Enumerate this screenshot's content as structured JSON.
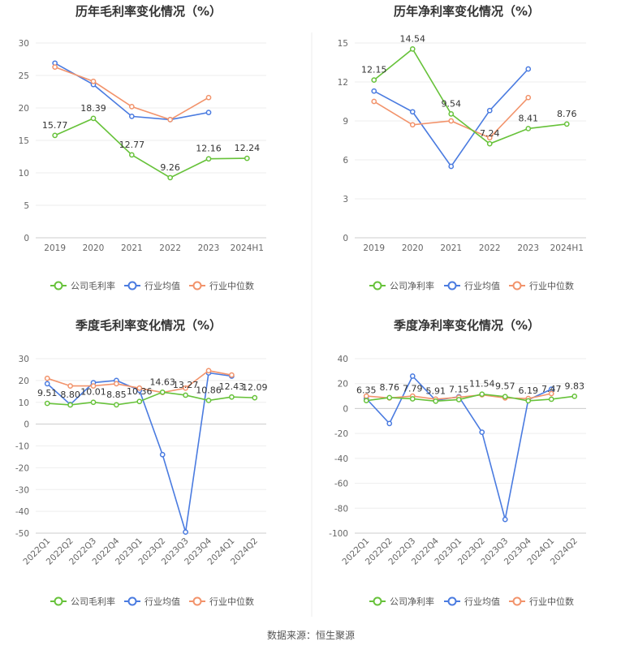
{
  "colors": {
    "company": "#67c23a",
    "industry_avg": "#4a7be0",
    "industry_median": "#f2936b"
  },
  "legend": {
    "gross_company": "公司毛利率",
    "net_company": "公司净利率",
    "industry_avg": "行业均值",
    "industry_median": "行业中位数"
  },
  "source": "数据来源：恒生聚源",
  "chart_data": [
    {
      "type": "line",
      "title": "历年毛利率变化情况（%）",
      "categories": [
        "2019",
        "2020",
        "2021",
        "2022",
        "2023",
        "2024H1"
      ],
      "ylim": [
        0,
        30
      ],
      "yticks": [
        0,
        5,
        10,
        15,
        20,
        25,
        30
      ],
      "grid": true,
      "legend_position": "bottom",
      "series": [
        {
          "name": "公司毛利率",
          "values": [
            15.77,
            18.39,
            12.77,
            9.26,
            12.16,
            12.24
          ],
          "labels": [
            "15.77",
            "18.39",
            "12.77",
            "9.26",
            "12.16",
            "12.24"
          ]
        },
        {
          "name": "行业均值",
          "values": [
            26.9,
            23.6,
            18.7,
            18.2,
            19.3,
            null
          ]
        },
        {
          "name": "行业中位数",
          "values": [
            26.3,
            24.1,
            20.2,
            18.2,
            21.6,
            null
          ]
        }
      ]
    },
    {
      "type": "line",
      "title": "历年净利率变化情况（%）",
      "categories": [
        "2019",
        "2020",
        "2021",
        "2022",
        "2023",
        "2024H1"
      ],
      "ylim": [
        0,
        15
      ],
      "yticks": [
        0,
        3,
        6,
        9,
        12,
        15
      ],
      "grid": true,
      "legend_position": "bottom",
      "series": [
        {
          "name": "公司净利率",
          "values": [
            12.15,
            14.54,
            9.54,
            7.24,
            8.41,
            8.76
          ],
          "labels": [
            "12.15",
            "14.54",
            "9.54",
            "7.24",
            "8.41",
            "8.76"
          ]
        },
        {
          "name": "行业均值",
          "values": [
            11.3,
            9.7,
            5.5,
            9.8,
            13.0,
            null
          ]
        },
        {
          "name": "行业中位数",
          "values": [
            10.5,
            8.7,
            9.0,
            7.7,
            10.8,
            null
          ]
        }
      ]
    },
    {
      "type": "line",
      "title": "季度毛利率变化情况（%）",
      "categories": [
        "2022Q1",
        "2022Q2",
        "2022Q3",
        "2022Q4",
        "2023Q1",
        "2023Q2",
        "2023Q3",
        "2023Q4",
        "2024Q1",
        "2024Q2"
      ],
      "ylim": [
        -50,
        30
      ],
      "yticks": [
        -50,
        -40,
        -30,
        -20,
        -10,
        0,
        10,
        20,
        30
      ],
      "grid": true,
      "legend_position": "bottom",
      "series": [
        {
          "name": "公司毛利率",
          "values": [
            9.51,
            8.8,
            10.01,
            8.85,
            10.36,
            14.63,
            13.27,
            10.86,
            12.43,
            12.09
          ],
          "labels": [
            "9.51",
            "8.80",
            "10.01",
            "8.85",
            "10.36",
            "14.63",
            "13.27",
            "10.86",
            "12.43",
            "12.09"
          ]
        },
        {
          "name": "行业均值",
          "values": [
            18.5,
            9.0,
            19.0,
            20.0,
            15.5,
            -14.0,
            -49.5,
            23.5,
            22.0,
            null
          ]
        },
        {
          "name": "行业中位数",
          "values": [
            21.0,
            17.5,
            17.5,
            18.5,
            16.5,
            14.5,
            16.5,
            24.5,
            22.5,
            null
          ]
        }
      ]
    },
    {
      "type": "line",
      "title": "季度净利率变化情况（%）",
      "categories": [
        "2022Q1",
        "2022Q2",
        "2022Q3",
        "2022Q4",
        "2023Q1",
        "2023Q2",
        "2023Q3",
        "2023Q4",
        "2024Q1",
        "2024Q2"
      ],
      "ylim": [
        -100,
        40
      ],
      "yticks": [
        -100,
        -80,
        -60,
        -40,
        -20,
        0,
        20,
        40
      ],
      "grid": true,
      "legend_position": "bottom",
      "series": [
        {
          "name": "公司净利率",
          "values": [
            6.35,
            8.76,
            7.79,
            5.91,
            7.15,
            11.54,
            9.57,
            6.19,
            7.47,
            9.83
          ],
          "labels": [
            "6.35",
            "8.76",
            "7.79",
            "5.91",
            "7.15",
            "11.54",
            "9.57",
            "6.19",
            "7.47",
            "9.83"
          ]
        },
        {
          "name": "行业均值",
          "values": [
            8.0,
            -12.0,
            26.0,
            6.5,
            9.5,
            -19.0,
            -89.0,
            7.0,
            15.5,
            null
          ]
        },
        {
          "name": "行业中位数",
          "values": [
            10.0,
            8.5,
            10.0,
            7.5,
            9.0,
            11.0,
            8.5,
            8.0,
            12.0,
            null
          ]
        }
      ]
    }
  ]
}
